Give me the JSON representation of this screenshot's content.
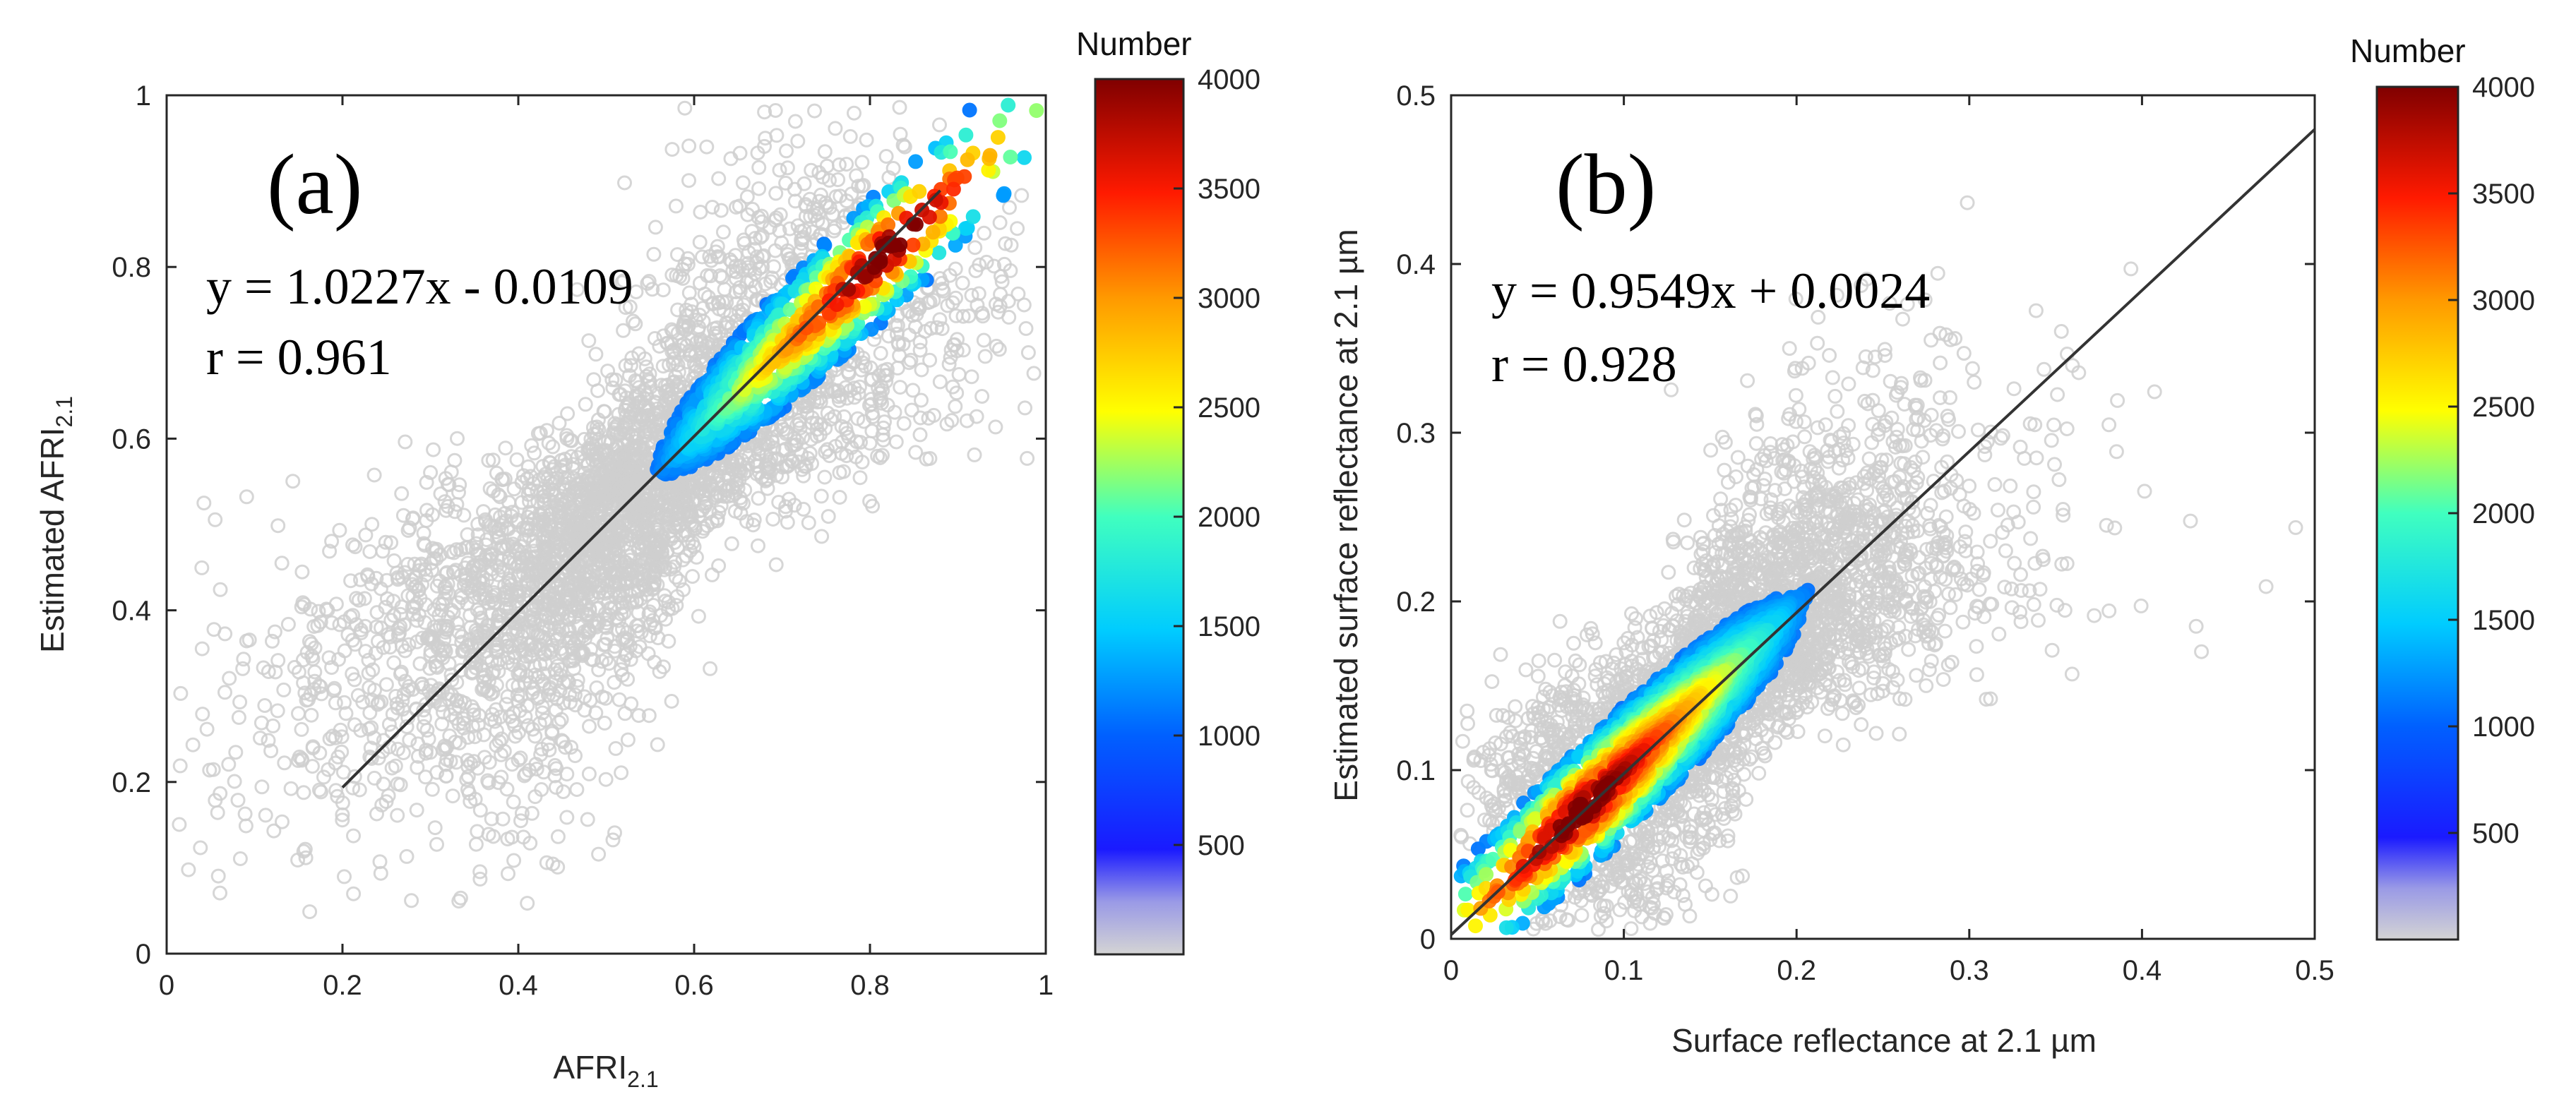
{
  "chart_data": [
    {
      "type": "scatter",
      "panel_label": "(a)",
      "equation": "y = 1.0227x - 0.0109",
      "r_text": "r = 0.961",
      "fit": {
        "slope": 1.0227,
        "intercept": -0.0109,
        "x_range": [
          0.2,
          0.88
        ]
      },
      "xlabel_main": "AFRI",
      "xlabel_sub": "2.1",
      "ylabel_main": "Estimated AFRI",
      "ylabel_sub": "2.1",
      "xlim": [
        0,
        1
      ],
      "ylim": [
        0,
        1
      ],
      "xticks": [
        "0",
        "0.2",
        "0.4",
        "0.6",
        "0.8",
        "1"
      ],
      "yticks": [
        "0",
        "0.2",
        "0.4",
        "0.6",
        "0.8",
        "1"
      ],
      "colorbar": {
        "title": "Number",
        "min": 0,
        "max": 4000,
        "ticks": [
          "500",
          "1000",
          "1500",
          "2000",
          "2500",
          "3000",
          "3500",
          "4000"
        ]
      },
      "density_cloud": {
        "center_x": 0.55,
        "center_y": 0.55,
        "spread_along": 0.22,
        "spread_across": 0.045,
        "peak_x": 0.82,
        "peak_y": 0.82
      }
    },
    {
      "type": "scatter",
      "panel_label": "(b)",
      "equation": "y = 0.9549x + 0.0024",
      "r_text": "r = 0.928",
      "fit": {
        "slope": 0.9549,
        "intercept": 0.0024,
        "x_range": [
          0,
          0.5
        ]
      },
      "xlabel_main": "Surface reflectance at 2.1 µm",
      "ylabel_main": "Estimated surface reflectance at 2.1 µm",
      "xlim": [
        0,
        0.5
      ],
      "ylim": [
        0,
        0.5
      ],
      "xticks": [
        "0",
        "0.1",
        "0.2",
        "0.3",
        "0.4",
        "0.5"
      ],
      "yticks": [
        "0",
        "0.1",
        "0.2",
        "0.3",
        "0.4",
        "0.5"
      ],
      "colorbar": {
        "title": "Number",
        "min": 0,
        "max": 4000,
        "ticks": [
          "500",
          "1000",
          "1500",
          "2000",
          "2500",
          "3000",
          "3500",
          "4000"
        ]
      },
      "density_cloud": {
        "center_x": 0.15,
        "center_y": 0.15,
        "spread_along": 0.085,
        "spread_across": 0.02,
        "peak_x": 0.075,
        "peak_y": 0.075
      }
    }
  ]
}
